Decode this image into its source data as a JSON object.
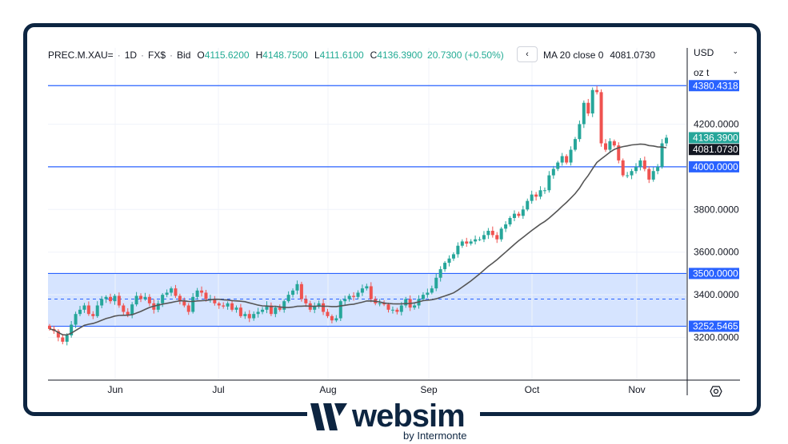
{
  "header": {
    "symbol": "PREC.M.XAU=",
    "interval": "1D",
    "source": "FX$",
    "price_type": "Bid",
    "open_label": "O",
    "open": "4115.6200",
    "high_label": "H",
    "high": "4148.7500",
    "low_label": "L",
    "low": "4111.6100",
    "close_label": "C",
    "close": "4136.3900",
    "change": "20.7300 (+0.50%)",
    "collapse_glyph": "‹"
  },
  "ma_legend": {
    "label": "MA 20 close 0",
    "value": "4081.0730"
  },
  "scale": {
    "currency": "USD",
    "unit": "oz t"
  },
  "logo": {
    "word": "websim",
    "sub": "by Intermonte"
  },
  "colors": {
    "up": "#26a69a",
    "down": "#ef5350",
    "ma": "#555555",
    "level_line": "#2962ff",
    "zone_fill": "#d6e4ff",
    "frame": "#0d2541"
  },
  "chart_data": {
    "type": "candlestick",
    "title": "",
    "xlabel": "",
    "ylabel": "",
    "ylim": [
      3000,
      4460
    ],
    "x_ticks": [
      "Jun",
      "Jul",
      "Aug",
      "Sep",
      "Oct",
      "Nov"
    ],
    "y_ticks": [
      "4200.0000",
      "3800.0000",
      "3600.0000",
      "3400.0000",
      "3200.0000"
    ],
    "y_tick_values": [
      4200,
      3800,
      3600,
      3400,
      3200
    ],
    "levels": [
      {
        "value": 4380.4318,
        "label": "4380.4318"
      },
      {
        "value": 4000.0,
        "label": "4000.0000"
      },
      {
        "value": 3500.0,
        "label": "3500.0000"
      },
      {
        "value": 3252.5465,
        "label": "3252.5465"
      }
    ],
    "zone": [
      3252.5465,
      3500.0
    ],
    "dashed_level": 3380,
    "last_close": {
      "value": 4136.39,
      "label": "4136.3900"
    },
    "ma_last": {
      "value": 4081.073,
      "label": "4081.0730"
    },
    "ma_name": "MA 20 close 0",
    "close_series": [
      3240,
      3230,
      3200,
      3180,
      3210,
      3260,
      3310,
      3330,
      3350,
      3310,
      3300,
      3350,
      3380,
      3390,
      3370,
      3395,
      3350,
      3320,
      3305,
      3355,
      3395,
      3380,
      3390,
      3360,
      3330,
      3360,
      3400,
      3410,
      3430,
      3395,
      3370,
      3350,
      3320,
      3390,
      3420,
      3410,
      3380,
      3380,
      3360,
      3350,
      3345,
      3360,
      3330,
      3340,
      3300,
      3310,
      3290,
      3310,
      3320,
      3330,
      3350,
      3310,
      3340,
      3330,
      3370,
      3400,
      3420,
      3450,
      3380,
      3360,
      3330,
      3345,
      3360,
      3320,
      3300,
      3280,
      3290,
      3370,
      3380,
      3395,
      3390,
      3410,
      3430,
      3440,
      3380,
      3360,
      3360,
      3355,
      3330,
      3330,
      3320,
      3350,
      3380,
      3340,
      3350,
      3380,
      3400,
      3410,
      3430,
      3480,
      3520,
      3550,
      3570,
      3590,
      3630,
      3650,
      3640,
      3650,
      3660,
      3660,
      3680,
      3700,
      3680,
      3660,
      3710,
      3730,
      3760,
      3780,
      3770,
      3800,
      3840,
      3870,
      3860,
      3890,
      3890,
      3960,
      3990,
      4020,
      4050,
      4020,
      4080,
      4130,
      4200,
      4300,
      4250,
      4360,
      4350,
      4110,
      4080,
      4120,
      4100,
      4030,
      3960,
      3960,
      3980,
      4000,
      4030,
      3990,
      3940,
      3980,
      4000,
      4110,
      4136.39
    ]
  }
}
